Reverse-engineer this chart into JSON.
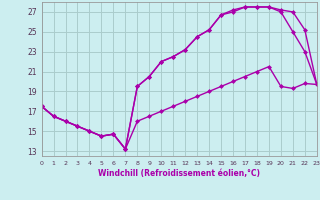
{
  "xlabel": "Windchill (Refroidissement éolien,°C)",
  "bg_color": "#cceef0",
  "grid_color": "#aacccc",
  "line_color": "#aa00aa",
  "line1_x": [
    0,
    1,
    2,
    3,
    4,
    5,
    6,
    7,
    8,
    9,
    10,
    11,
    12,
    13,
    14,
    15,
    16,
    17,
    18,
    19,
    20,
    21,
    22,
    23
  ],
  "line1_y": [
    17.5,
    16.5,
    16.0,
    15.5,
    15.0,
    14.5,
    14.7,
    13.2,
    16.0,
    16.5,
    17.0,
    17.5,
    18.0,
    18.5,
    19.0,
    19.5,
    20.0,
    20.5,
    21.0,
    21.5,
    19.5,
    19.3,
    19.8,
    19.7
  ],
  "line2_x": [
    0,
    1,
    2,
    3,
    4,
    5,
    6,
    7,
    8,
    9,
    10,
    11,
    12,
    13,
    14,
    15,
    16,
    17,
    18,
    19,
    20,
    21,
    22,
    23
  ],
  "line2_y": [
    17.5,
    16.5,
    16.0,
    15.5,
    15.0,
    14.5,
    14.7,
    13.2,
    19.5,
    20.5,
    22.0,
    22.5,
    23.2,
    24.5,
    25.2,
    26.7,
    27.0,
    27.5,
    27.5,
    27.5,
    27.0,
    25.0,
    23.0,
    19.7
  ],
  "line3_x": [
    0,
    1,
    2,
    3,
    4,
    5,
    6,
    7,
    8,
    9,
    10,
    11,
    12,
    13,
    14,
    15,
    16,
    17,
    18,
    19,
    20,
    21,
    22,
    23
  ],
  "line3_y": [
    17.5,
    16.5,
    16.0,
    15.5,
    15.0,
    14.5,
    14.7,
    13.2,
    19.5,
    20.5,
    22.0,
    22.5,
    23.2,
    24.5,
    25.2,
    26.7,
    27.2,
    27.5,
    27.5,
    27.5,
    27.2,
    27.0,
    25.2,
    19.7
  ],
  "xlim": [
    0,
    23
  ],
  "ylim": [
    12.5,
    28.0
  ],
  "yticks": [
    13,
    15,
    17,
    19,
    21,
    23,
    25,
    27
  ],
  "xticks": [
    0,
    1,
    2,
    3,
    4,
    5,
    6,
    7,
    8,
    9,
    10,
    11,
    12,
    13,
    14,
    15,
    16,
    17,
    18,
    19,
    20,
    21,
    22,
    23
  ]
}
